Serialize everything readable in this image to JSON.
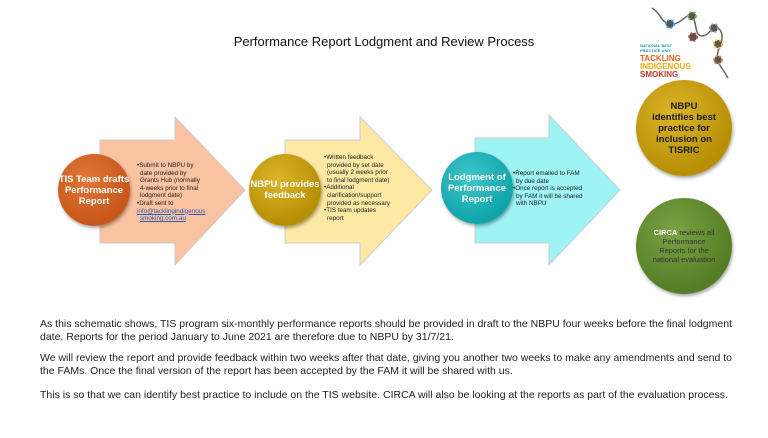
{
  "title": "Performance Report Lodgment and Review Process",
  "logo": {
    "line1": "NATIONAL BEST PRACTICE UNIT",
    "line2": "TACKLING",
    "line3": "INDIGENOUS",
    "line4": "SMOKING"
  },
  "steps": [
    {
      "circle": "TIS Team drafts Performance Report",
      "color": "#c8561a",
      "arrow_color": "#f9c2a0",
      "bullets": [
        "Submit to NBPU by date provided by Grants Hub (normally 4-weeks prior to final lodgment date)",
        "Draft sent to"
      ],
      "link": "info@tacklingindigenoussmoking.com.au"
    },
    {
      "circle": "NBPU provides feedback",
      "color": "#c9a007",
      "arrow_color": "#fde9a3",
      "bullets": [
        "Written feedback provided by set date (usually 2 weeks prior to final lodgment date)",
        "Additional clarification/support provided as necessary",
        "TIS team updates report"
      ]
    },
    {
      "circle": "Lodgment of Performance Report",
      "color": "#13b3b8",
      "arrow_color": "#9ef3f4",
      "bullets": [
        "Report emailed to FAM by due date",
        "Once report is accepted by FAM it will be shared with NBPU"
      ]
    }
  ],
  "outcomes": [
    {
      "text": "NBPU identifies best practice for inclusion on TISRIC",
      "color": "#c9a007"
    },
    {
      "highlight": "CIRCA",
      "text": " reviews all Performance Reports for the national evaluation",
      "color": "#5e8a2c"
    }
  ],
  "paragraphs": [
    "As this schematic shows, TIS program six-monthly performance reports should be provided in draft to the NBPU four weeks before the final lodgment date. Reports for the period January to June 2021 are therefore due to NBPU by 31/7/21.",
    "We will review the report and provide feedback within two weeks after that date, giving you another two weeks to make any amendments and send to the FAMs. Once the final version of the report has been accepted by the FAM it will be shared with us.",
    "This is so that we can identify best practice to include on the TIS website. CIRCA will also be looking at the reports as part of the evaluation process."
  ]
}
